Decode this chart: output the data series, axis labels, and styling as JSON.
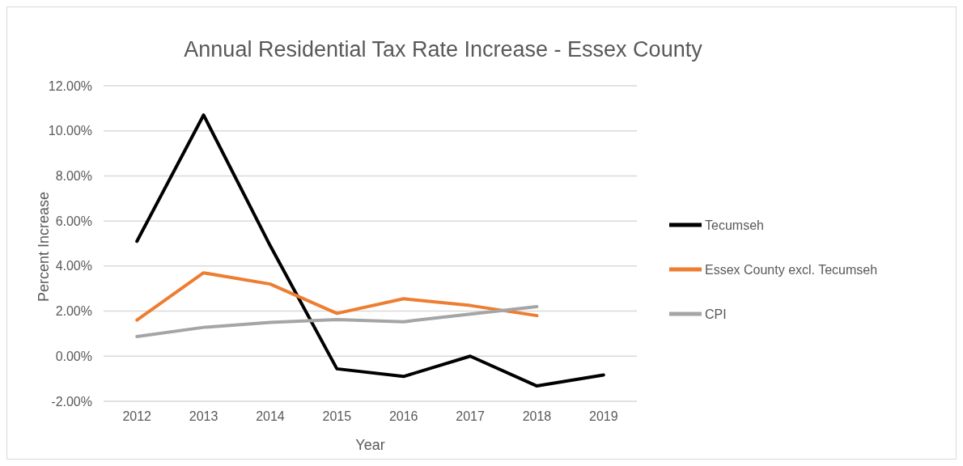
{
  "chart_data": {
    "type": "line",
    "title": "Annual Residential Tax Rate Increase - Essex County",
    "xlabel": "Year",
    "ylabel": "Percent Increase",
    "categories": [
      "2012",
      "2013",
      "2014",
      "2015",
      "2016",
      "2017",
      "2018",
      "2019"
    ],
    "series": [
      {
        "name": "Tecumseh",
        "color": "#000000",
        "values": [
          5.1,
          10.7,
          4.9,
          -0.56,
          -0.9,
          0.0,
          -1.32,
          -0.83
        ]
      },
      {
        "name": "Essex County excl. Tecumseh",
        "color": "#ed7d31",
        "values": [
          1.6,
          3.7,
          3.2,
          1.9,
          2.55,
          2.25,
          1.8,
          null
        ]
      },
      {
        "name": "CPI",
        "color": "#a5a5a5",
        "values": [
          0.87,
          1.28,
          1.5,
          1.63,
          1.53,
          1.87,
          2.2,
          null
        ]
      }
    ],
    "ylim": [
      -2,
      12
    ],
    "yticks": [
      {
        "value": -2,
        "label": "-2.00%"
      },
      {
        "value": 0,
        "label": "0.00%"
      },
      {
        "value": 2,
        "label": "2.00%"
      },
      {
        "value": 4,
        "label": "4.00%"
      },
      {
        "value": 6,
        "label": "6.00%"
      },
      {
        "value": 8,
        "label": "8.00%"
      },
      {
        "value": 10,
        "label": "10.00%"
      },
      {
        "value": 12,
        "label": "12.00%"
      }
    ],
    "grid": "y",
    "legend": "right",
    "marker": "none",
    "line_style": "solid"
  }
}
